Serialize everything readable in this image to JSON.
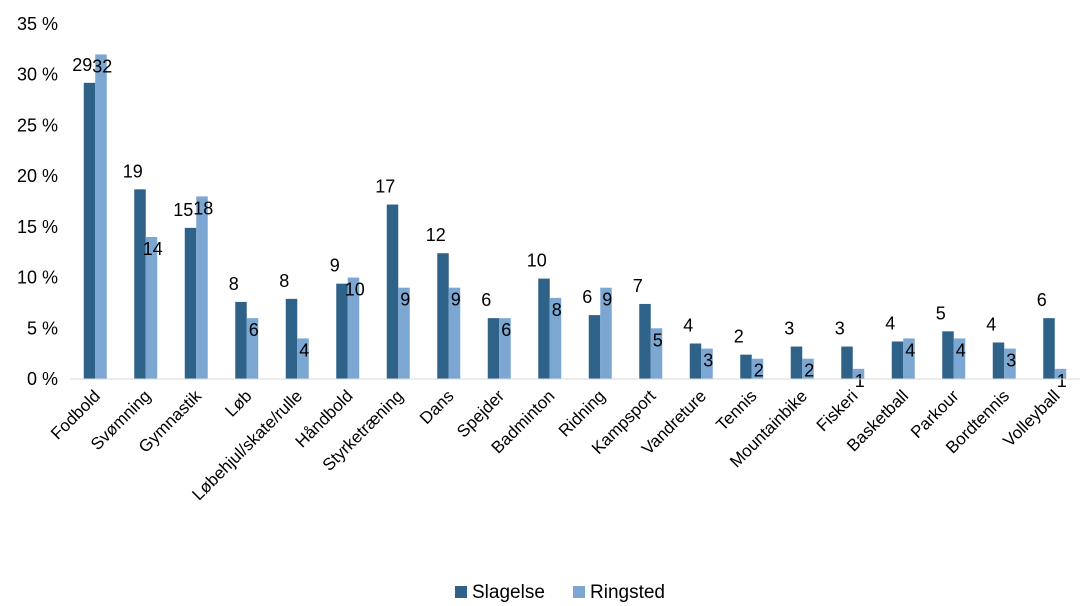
{
  "chart_data": {
    "type": "bar",
    "categories": [
      "Fodbold",
      "Svømning",
      "Gymnastik",
      "Løb",
      "Løbehjul/skate/rulle",
      "Håndbold",
      "Styrketræning",
      "Dans",
      "Spejder",
      "Badminton",
      "Ridning",
      "Kampsport",
      "Vandreture",
      "Tennis",
      "Mountainbike",
      "Fiskeri",
      "Basketball",
      "Parkour",
      "Bordtennis",
      "Volleyball"
    ],
    "series": [
      {
        "name": "Slagelse",
        "color": "#2e6289",
        "values": [
          29.2,
          18.7,
          14.9,
          7.6,
          7.9,
          9.4,
          17.2,
          12.4,
          6.0,
          9.9,
          6.3,
          7.4,
          3.5,
          2.4,
          3.2,
          3.2,
          3.7,
          4.7,
          3.6,
          6.0
        ],
        "labels": [
          "29",
          "19",
          "15",
          "8",
          "8",
          "9",
          "17",
          "12",
          "6",
          "10",
          "6",
          "7",
          "4",
          "2",
          "3",
          "3",
          "4",
          "5",
          "4",
          "6"
        ]
      },
      {
        "name": "Ringsted",
        "color": "#7ba7d2",
        "values": [
          32.0,
          14.0,
          18.0,
          6.0,
          4.0,
          10.0,
          9.0,
          9.0,
          6.0,
          8.0,
          9.0,
          5.0,
          3.0,
          2.0,
          2.0,
          1.0,
          4.0,
          4.0,
          3.0,
          1.0
        ],
        "labels": [
          "32",
          "14",
          "18",
          "6",
          "4",
          "10",
          "9",
          "9",
          "6",
          "8",
          "9",
          "5",
          "3",
          "2",
          "2",
          "1",
          "4",
          "4",
          "3",
          "1"
        ]
      }
    ],
    "y_ticks": [
      "0 %",
      "5 %",
      "10 %",
      "15 %",
      "20 %",
      "25 %",
      "30 %",
      "35 %"
    ],
    "ylim": [
      0,
      35
    ],
    "grid": false,
    "legend_position": "bottom"
  }
}
